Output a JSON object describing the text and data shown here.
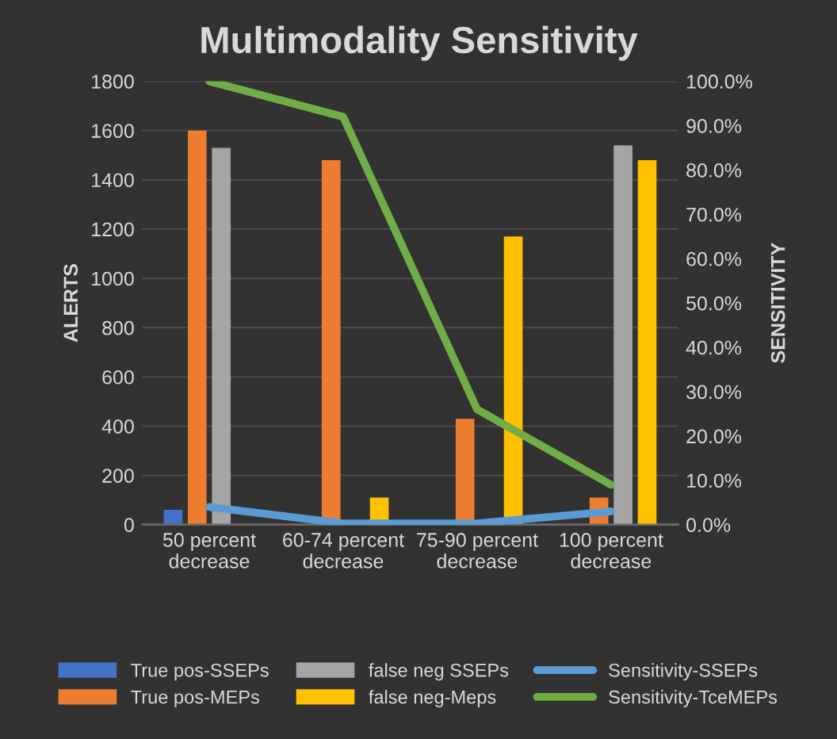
{
  "chart_data": {
    "type": "bar",
    "title": "Multimodality Sensitivity",
    "ylabel": "ALERTS",
    "y2label": "SENSITIVITY",
    "categories": [
      "50 percent\ndecrease",
      "60-74 percent\ndecrease",
      "75-90 percent\ndecrease",
      "100 percent\ndecrease"
    ],
    "series": [
      {
        "name": "True pos-SSEPs",
        "color": "#4472c4",
        "values": [
          60,
          0,
          0,
          0
        ]
      },
      {
        "name": "True pos-MEPs",
        "color": "#ed7d31",
        "values": [
          1600,
          1480,
          430,
          110
        ]
      },
      {
        "name": "false neg SSEPs",
        "color": "#a5a5a5",
        "values": [
          1530,
          0,
          0,
          1540
        ]
      },
      {
        "name": "false neg-Meps",
        "color": "#ffc000",
        "values": [
          0,
          110,
          1170,
          1480
        ]
      },
      {
        "name": "Sensitivity-SSEPs",
        "color": "#5b9bd5",
        "type": "line",
        "axis": "y2",
        "values": [
          4.0,
          0.3,
          0.3,
          3.0
        ]
      },
      {
        "name": "Sensitivity-TceMEPs",
        "color": "#70ad47",
        "type": "line",
        "axis": "y2",
        "values": [
          100,
          92,
          26,
          9
        ]
      }
    ],
    "ylim": [
      0,
      1800
    ],
    "yticks": [
      0,
      200,
      400,
      600,
      800,
      1000,
      1200,
      1400,
      1600,
      1800
    ],
    "y2lim": [
      0,
      100
    ],
    "y2ticks": [
      {
        "value": 0,
        "label": "0.0%"
      },
      {
        "value": 10,
        "label": "10.0%"
      },
      {
        "value": 20,
        "label": "20.0%"
      },
      {
        "value": 30,
        "label": "30.0%"
      },
      {
        "value": 40,
        "label": "40.0%"
      },
      {
        "value": 50,
        "label": "50.0%"
      },
      {
        "value": 60,
        "label": "60.0%"
      },
      {
        "value": 70,
        "label": "70.0%"
      },
      {
        "value": 80,
        "label": "80.0%"
      },
      {
        "value": 90,
        "label": "90.0%"
      },
      {
        "value": 100,
        "label": "100.0%"
      }
    ],
    "grid": "y",
    "legend": "bottom"
  }
}
